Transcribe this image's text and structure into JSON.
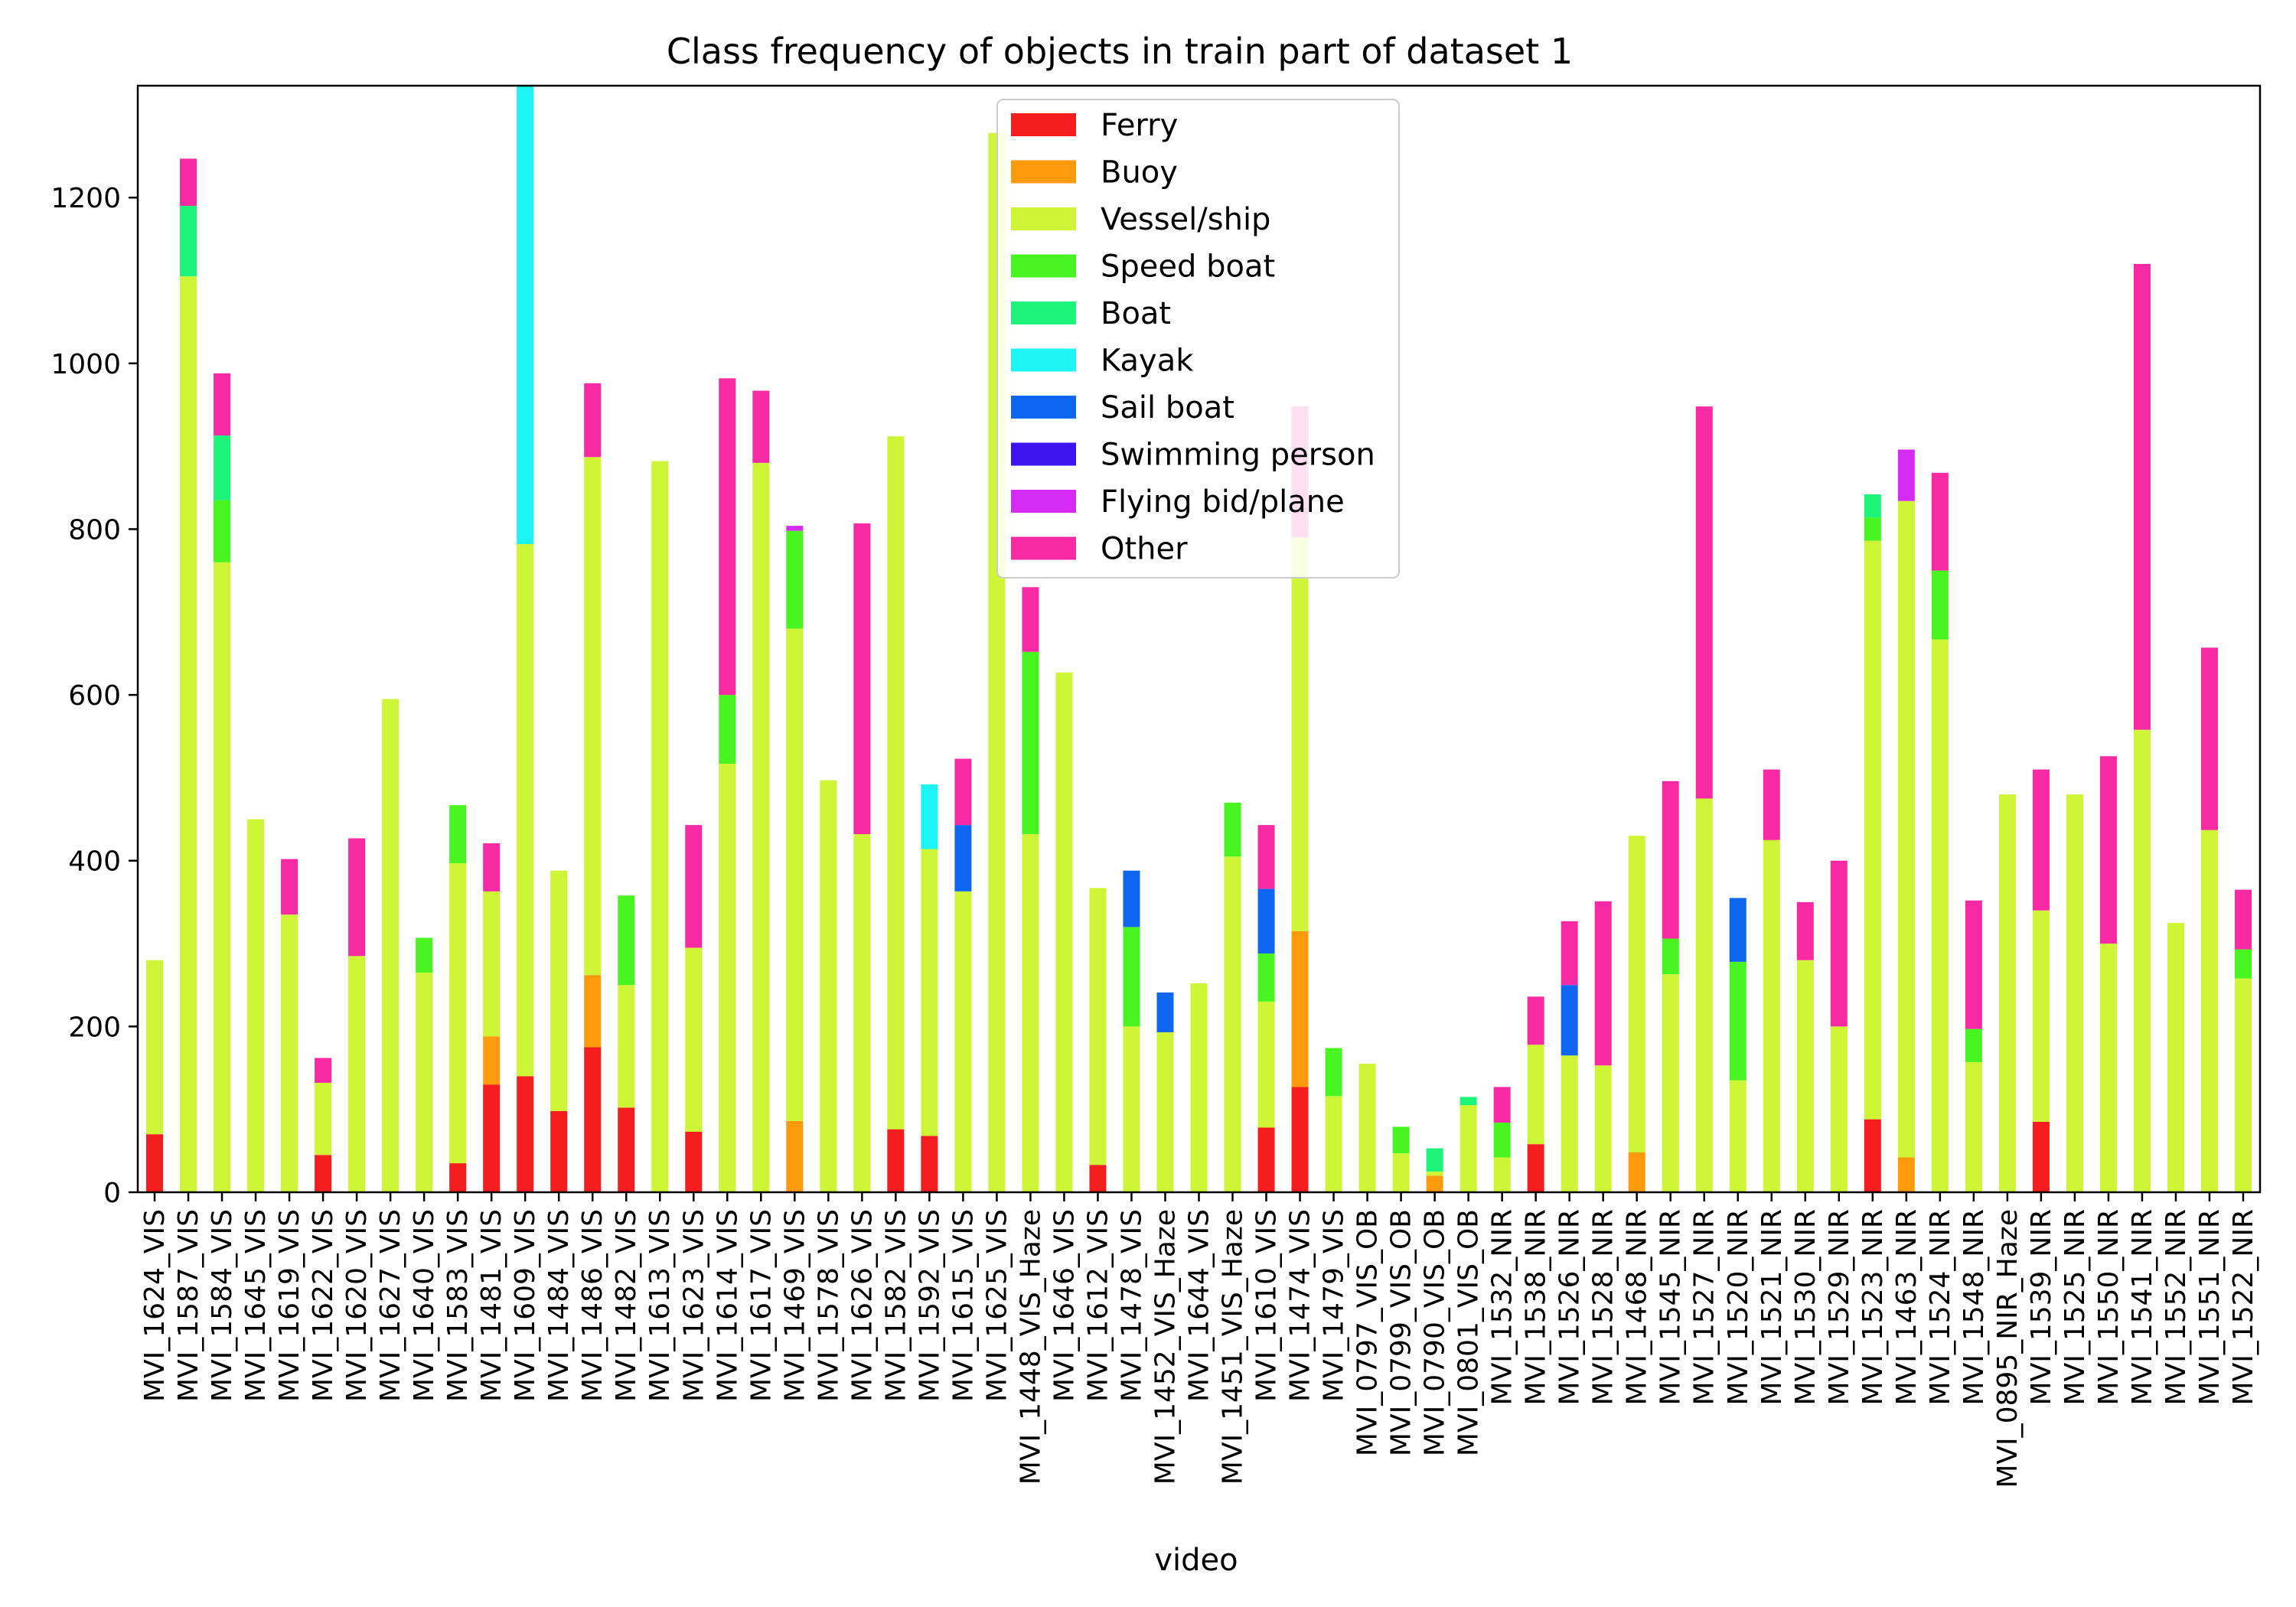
{
  "chart_data": {
    "type": "bar",
    "stacked": true,
    "title": "Class frequency of objects in train part of dataset 1",
    "xlabel": "video",
    "ylabel": "",
    "ylim": [
      0,
      1335
    ],
    "yticks": [
      0,
      200,
      400,
      600,
      800,
      1000,
      1200
    ],
    "legend_position": "top-center",
    "categories": [
      "MVI_1624_VIS",
      "MVI_1587_VIS",
      "MVI_1584_VIS",
      "MVI_1645_VIS",
      "MVI_1619_VIS",
      "MVI_1622_VIS",
      "MVI_1620_VIS",
      "MVI_1627_VIS",
      "MVI_1640_VIS",
      "MVI_1583_VIS",
      "MVI_1481_VIS",
      "MVI_1609_VIS",
      "MVI_1484_VIS",
      "MVI_1486_VIS",
      "MVI_1482_VIS",
      "MVI_1613_VIS",
      "MVI_1623_VIS",
      "MVI_1614_VIS",
      "MVI_1617_VIS",
      "MVI_1469_VIS",
      "MVI_1578_VIS",
      "MVI_1626_VIS",
      "MVI_1582_VIS",
      "MVI_1592_VIS",
      "MVI_1615_VIS",
      "MVI_1625_VIS",
      "MVI_1448_VIS_Haze",
      "MVI_1646_VIS",
      "MVI_1612_VIS",
      "MVI_1478_VIS",
      "MVI_1452_VIS_Haze",
      "MVI_1644_VIS",
      "MVI_1451_VIS_Haze",
      "MVI_1610_VIS",
      "MVI_1474_VIS",
      "MVI_1479_VIS",
      "MVI_0797_VIS_OB",
      "MVI_0799_VIS_OB",
      "MVI_0790_VIS_OB",
      "MVI_0801_VIS_OB",
      "MVI_1532_NIR",
      "MVI_1538_NIR",
      "MVI_1526_NIR",
      "MVI_1528_NIR",
      "MVI_1468_NIR",
      "MVI_1545_NIR",
      "MVI_1527_NIR",
      "MVI_1520_NIR",
      "MVI_1521_NIR",
      "MVI_1530_NIR",
      "MVI_1529_NIR",
      "MVI_1523_NIR",
      "MVI_1463_NIR",
      "MVI_1524_NIR",
      "MVI_1548_NIR",
      "MVI_0895_NIR_Haze",
      "MVI_1539_NIR",
      "MVI_1525_NIR",
      "MVI_1550_NIR",
      "MVI_1541_NIR",
      "MVI_1552_NIR",
      "MVI_1551_NIR",
      "MVI_1522_NIR"
    ],
    "series": [
      {
        "name": "Ferry",
        "color": "#f51d1d",
        "values": [
          70,
          0,
          0,
          0,
          0,
          45,
          0,
          0,
          0,
          35,
          130,
          140,
          98,
          175,
          102,
          0,
          73,
          0,
          0,
          0,
          0,
          0,
          76,
          68,
          0,
          0,
          0,
          0,
          33,
          0,
          0,
          0,
          0,
          78,
          127,
          0,
          0,
          0,
          0,
          0,
          0,
          58,
          0,
          0,
          0,
          0,
          0,
          0,
          0,
          0,
          0,
          88,
          0,
          0,
          0,
          0,
          85,
          0,
          0,
          0,
          0,
          0,
          0
        ]
      },
      {
        "name": "Buoy",
        "color": "#ff9a0d",
        "values": [
          0,
          0,
          0,
          0,
          0,
          0,
          0,
          0,
          0,
          0,
          58,
          0,
          0,
          87,
          0,
          0,
          0,
          0,
          0,
          86,
          0,
          0,
          0,
          0,
          0,
          0,
          0,
          0,
          0,
          0,
          0,
          0,
          0,
          0,
          188,
          0,
          0,
          0,
          20,
          0,
          0,
          0,
          0,
          0,
          48,
          0,
          0,
          0,
          0,
          0,
          0,
          0,
          42,
          0,
          0,
          0,
          0,
          0,
          0,
          0,
          0,
          0,
          0
        ]
      },
      {
        "name": "Vessel/ship",
        "color": "#cef536",
        "values": [
          210,
          1105,
          760,
          450,
          335,
          87,
          285,
          595,
          265,
          362,
          175,
          642,
          290,
          625,
          148,
          882,
          222,
          517,
          880,
          594,
          497,
          432,
          836,
          346,
          363,
          1278,
          432,
          627,
          334,
          200,
          193,
          252,
          405,
          152,
          475,
          116,
          155,
          47,
          5,
          105,
          42,
          120,
          165,
          153,
          382,
          263,
          475,
          135,
          425,
          280,
          200,
          698,
          792,
          667,
          157,
          480,
          255,
          480,
          300,
          558,
          325,
          437,
          258
        ]
      },
      {
        "name": "Speed boat",
        "color": "#48f520",
        "values": [
          0,
          0,
          75,
          0,
          0,
          0,
          0,
          0,
          42,
          70,
          0,
          0,
          0,
          0,
          108,
          0,
          0,
          83,
          0,
          118,
          0,
          0,
          0,
          0,
          0,
          0,
          220,
          0,
          0,
          120,
          0,
          0,
          65,
          58,
          0,
          58,
          0,
          32,
          0,
          0,
          42,
          0,
          0,
          0,
          0,
          43,
          0,
          143,
          0,
          0,
          0,
          28,
          0,
          83,
          40,
          0,
          0,
          0,
          0,
          0,
          0,
          0,
          35
        ]
      },
      {
        "name": "Boat",
        "color": "#1df57a",
        "values": [
          0,
          85,
          78,
          0,
          0,
          0,
          0,
          0,
          0,
          0,
          0,
          0,
          0,
          0,
          0,
          0,
          0,
          0,
          0,
          0,
          0,
          0,
          0,
          0,
          0,
          0,
          0,
          0,
          0,
          0,
          0,
          0,
          0,
          0,
          0,
          0,
          0,
          0,
          28,
          10,
          0,
          0,
          0,
          0,
          0,
          0,
          0,
          0,
          0,
          0,
          0,
          28,
          0,
          0,
          0,
          0,
          0,
          0,
          0,
          0,
          0,
          0,
          0
        ]
      },
      {
        "name": "Kayak",
        "color": "#1df5f5",
        "values": [
          0,
          0,
          0,
          0,
          0,
          0,
          0,
          0,
          0,
          0,
          0,
          553,
          0,
          0,
          0,
          0,
          0,
          0,
          0,
          0,
          0,
          0,
          0,
          78,
          0,
          0,
          0,
          0,
          0,
          0,
          0,
          0,
          0,
          0,
          0,
          0,
          0,
          0,
          0,
          0,
          0,
          0,
          0,
          0,
          0,
          0,
          0,
          0,
          0,
          0,
          0,
          0,
          0,
          0,
          0,
          0,
          0,
          0,
          0,
          0,
          0,
          0,
          0
        ]
      },
      {
        "name": "Sail boat",
        "color": "#0f66f0",
        "values": [
          0,
          0,
          0,
          0,
          0,
          0,
          0,
          0,
          0,
          0,
          0,
          0,
          0,
          0,
          0,
          0,
          0,
          0,
          0,
          0,
          0,
          0,
          0,
          0,
          80,
          0,
          0,
          0,
          0,
          68,
          48,
          0,
          0,
          78,
          0,
          0,
          0,
          0,
          0,
          0,
          0,
          0,
          85,
          0,
          0,
          0,
          0,
          77,
          0,
          0,
          0,
          0,
          0,
          0,
          0,
          0,
          0,
          0,
          0,
          0,
          0,
          0,
          0
        ]
      },
      {
        "name": "Swimming person",
        "color": "#3d14f0",
        "values": [
          0,
          0,
          0,
          0,
          0,
          0,
          0,
          0,
          0,
          0,
          0,
          0,
          0,
          0,
          0,
          0,
          0,
          0,
          0,
          0,
          0,
          0,
          0,
          0,
          0,
          0,
          0,
          0,
          0,
          0,
          0,
          0,
          0,
          0,
          0,
          0,
          0,
          0,
          0,
          0,
          0,
          0,
          0,
          0,
          0,
          0,
          0,
          0,
          0,
          0,
          0,
          0,
          0,
          0,
          0,
          0,
          0,
          0,
          0,
          0,
          0,
          0,
          0
        ]
      },
      {
        "name": "Flying bid/plane",
        "color": "#d62af5",
        "values": [
          0,
          0,
          0,
          0,
          0,
          0,
          0,
          0,
          0,
          0,
          0,
          0,
          0,
          0,
          0,
          0,
          0,
          0,
          0,
          6,
          0,
          0,
          0,
          0,
          0,
          0,
          0,
          0,
          0,
          0,
          0,
          0,
          0,
          0,
          0,
          0,
          0,
          0,
          0,
          0,
          0,
          0,
          0,
          0,
          0,
          0,
          0,
          0,
          0,
          0,
          0,
          0,
          62,
          0,
          0,
          0,
          0,
          0,
          0,
          0,
          0,
          0,
          0
        ]
      },
      {
        "name": "Other",
        "color": "#f72aa3",
        "values": [
          0,
          57,
          75,
          0,
          67,
          30,
          142,
          0,
          0,
          0,
          58,
          0,
          0,
          89,
          0,
          0,
          148,
          382,
          87,
          0,
          0,
          375,
          0,
          0,
          80,
          0,
          78,
          0,
          0,
          0,
          0,
          0,
          0,
          77,
          158,
          0,
          0,
          0,
          0,
          0,
          43,
          58,
          77,
          198,
          0,
          190,
          473,
          0,
          85,
          70,
          200,
          0,
          0,
          118,
          155,
          0,
          170,
          0,
          226,
          562,
          0,
          220,
          72
        ]
      }
    ]
  }
}
